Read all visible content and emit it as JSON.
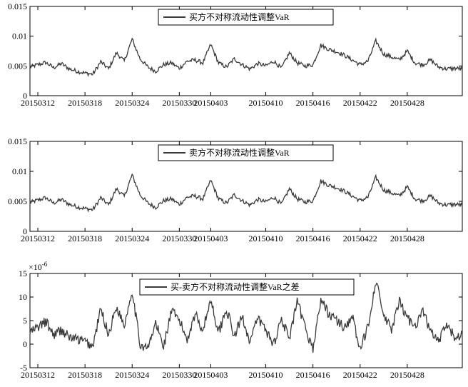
{
  "chart_data": [
    {
      "type": "line",
      "legend": "买方不对称流动性调整VaR",
      "legend_position": "top-center",
      "grid": false,
      "ylim": [
        0,
        0.015
      ],
      "yticks": [
        0,
        0.005,
        0.01,
        0.015
      ],
      "ytick_labels": [
        "0",
        "0.005",
        "0.01",
        "0.015"
      ],
      "x_dates": [
        "20150312",
        "20150318",
        "20150324",
        "20150330",
        "20150403",
        "20150410",
        "20150416",
        "20150422",
        "20150428"
      ],
      "x_start": "20150311",
      "x_end": "20150505",
      "color": "#3a3a3a",
      "approx_points": [
        [
          "20150311",
          0.0048
        ],
        [
          "20150312",
          0.0052
        ],
        [
          "20150313",
          0.0056
        ],
        [
          "20150314",
          0.0047
        ],
        [
          "20150315",
          0.0054
        ],
        [
          "20150316",
          0.0045
        ],
        [
          "20150317",
          0.0041
        ],
        [
          "20150318",
          0.0038
        ],
        [
          "20150319",
          0.0036
        ],
        [
          "20150320",
          0.0057
        ],
        [
          "20150321",
          0.0045
        ],
        [
          "20150322",
          0.0072
        ],
        [
          "20150323",
          0.0058
        ],
        [
          "20150324",
          0.0095
        ],
        [
          "20150325",
          0.0062
        ],
        [
          "20150326",
          0.0048
        ],
        [
          "20150327",
          0.0041
        ],
        [
          "20150328",
          0.0052
        ],
        [
          "20150329",
          0.0055
        ],
        [
          "20150330",
          0.0046
        ],
        [
          "20150331",
          0.0058
        ],
        [
          "20150401",
          0.006
        ],
        [
          "20150402",
          0.0055
        ],
        [
          "20150403",
          0.0086
        ],
        [
          "20150404",
          0.0055
        ],
        [
          "20150405",
          0.0048
        ],
        [
          "20150406",
          0.0062
        ],
        [
          "20150407",
          0.0052
        ],
        [
          "20150408",
          0.0045
        ],
        [
          "20150409",
          0.0054
        ],
        [
          "20150410",
          0.005
        ],
        [
          "20150411",
          0.0058
        ],
        [
          "20150412",
          0.0046
        ],
        [
          "20150413",
          0.0072
        ],
        [
          "20150414",
          0.0055
        ],
        [
          "20150415",
          0.005
        ],
        [
          "20150416",
          0.0052
        ],
        [
          "20150417",
          0.0085
        ],
        [
          "20150418",
          0.0078
        ],
        [
          "20150419",
          0.0074
        ],
        [
          "20150420",
          0.0068
        ],
        [
          "20150421",
          0.006
        ],
        [
          "20150422",
          0.0052
        ],
        [
          "20150423",
          0.0058
        ],
        [
          "20150424",
          0.0092
        ],
        [
          "20150425",
          0.007
        ],
        [
          "20150426",
          0.0065
        ],
        [
          "20150427",
          0.006
        ],
        [
          "20150428",
          0.0075
        ],
        [
          "20150429",
          0.0055
        ],
        [
          "20150430",
          0.0052
        ],
        [
          "20150501",
          0.006
        ],
        [
          "20150502",
          0.0048
        ],
        [
          "20150503",
          0.0045
        ],
        [
          "20150504",
          0.0046
        ],
        [
          "20150505",
          0.0045
        ]
      ]
    },
    {
      "type": "line",
      "legend": "卖方不对称流动性调整VaR",
      "legend_position": "top-center",
      "grid": false,
      "ylim": [
        0,
        0.015
      ],
      "yticks": [
        0,
        0.005,
        0.01,
        0.015
      ],
      "ytick_labels": [
        "0",
        "0.005",
        "0.01",
        "0.015"
      ],
      "x_dates": [
        "20150312",
        "20150318",
        "20150324",
        "20150330",
        "20150403",
        "20150410",
        "20150416",
        "20150422",
        "20150428"
      ],
      "x_start": "20150311",
      "x_end": "20150505",
      "color": "#3a3a3a",
      "approx_points": [
        [
          "20150311",
          0.0048
        ],
        [
          "20150312",
          0.0052
        ],
        [
          "20150313",
          0.0056
        ],
        [
          "20150314",
          0.0047
        ],
        [
          "20150315",
          0.0053
        ],
        [
          "20150316",
          0.0045
        ],
        [
          "20150317",
          0.0041
        ],
        [
          "20150318",
          0.0038
        ],
        [
          "20150319",
          0.0036
        ],
        [
          "20150320",
          0.0056
        ],
        [
          "20150321",
          0.0044
        ],
        [
          "20150322",
          0.0071
        ],
        [
          "20150323",
          0.0058
        ],
        [
          "20150324",
          0.0094
        ],
        [
          "20150325",
          0.0061
        ],
        [
          "20150326",
          0.0047
        ],
        [
          "20150327",
          0.004
        ],
        [
          "20150328",
          0.0051
        ],
        [
          "20150329",
          0.0054
        ],
        [
          "20150330",
          0.0045
        ],
        [
          "20150331",
          0.0057
        ],
        [
          "20150401",
          0.0059
        ],
        [
          "20150402",
          0.0054
        ],
        [
          "20150403",
          0.0085
        ],
        [
          "20150404",
          0.0054
        ],
        [
          "20150405",
          0.0047
        ],
        [
          "20150406",
          0.0061
        ],
        [
          "20150407",
          0.0051
        ],
        [
          "20150408",
          0.0044
        ],
        [
          "20150409",
          0.0053
        ],
        [
          "20150410",
          0.0049
        ],
        [
          "20150411",
          0.0057
        ],
        [
          "20150412",
          0.0045
        ],
        [
          "20150413",
          0.0071
        ],
        [
          "20150414",
          0.0054
        ],
        [
          "20150415",
          0.0049
        ],
        [
          "20150416",
          0.0051
        ],
        [
          "20150417",
          0.0084
        ],
        [
          "20150418",
          0.0077
        ],
        [
          "20150419",
          0.0073
        ],
        [
          "20150420",
          0.0067
        ],
        [
          "20150421",
          0.0059
        ],
        [
          "20150422",
          0.0051
        ],
        [
          "20150423",
          0.0057
        ],
        [
          "20150424",
          0.009
        ],
        [
          "20150425",
          0.0069
        ],
        [
          "20150426",
          0.0064
        ],
        [
          "20150427",
          0.0059
        ],
        [
          "20150428",
          0.0074
        ],
        [
          "20150429",
          0.0054
        ],
        [
          "20150430",
          0.0051
        ],
        [
          "20150501",
          0.0059
        ],
        [
          "20150502",
          0.0047
        ],
        [
          "20150503",
          0.0044
        ],
        [
          "20150504",
          0.0045
        ],
        [
          "20150505",
          0.0044
        ]
      ]
    },
    {
      "type": "line",
      "legend": "买-卖方不对称流动性调整VaR之差",
      "legend_position": "top-center",
      "grid": false,
      "y_multiplier_base": "×10",
      "y_multiplier_exp": "-6",
      "ylim": [
        -5,
        15
      ],
      "yticks": [
        -5,
        0,
        5,
        10,
        15
      ],
      "ytick_labels": [
        "-5",
        "0",
        "5",
        "10",
        "15"
      ],
      "x_dates": [
        "20150312",
        "20150318",
        "20150324",
        "20150330",
        "20150403",
        "20150410",
        "20150416",
        "20150422",
        "20150428"
      ],
      "x_start": "20150311",
      "x_end": "20150505",
      "color": "#3a3a3a",
      "approx_points": [
        [
          "20150311",
          2.5
        ],
        [
          "20150312",
          3.5
        ],
        [
          "20150313",
          4.8
        ],
        [
          "20150314",
          2.0
        ],
        [
          "20150315",
          3.0
        ],
        [
          "20150316",
          1.5
        ],
        [
          "20150317",
          1.0
        ],
        [
          "20150318",
          0.5
        ],
        [
          "20150319",
          -0.5
        ],
        [
          "20150320",
          7.5
        ],
        [
          "20150321",
          2.0
        ],
        [
          "20150322",
          8.0
        ],
        [
          "20150323",
          4.0
        ],
        [
          "20150324",
          11.5
        ],
        [
          "20150325",
          0.0
        ],
        [
          "20150326",
          -1.0
        ],
        [
          "20150327",
          4.5
        ],
        [
          "20150328",
          -0.5
        ],
        [
          "20150329",
          7.0
        ],
        [
          "20150330",
          5.0
        ],
        [
          "20150331",
          1.0
        ],
        [
          "20150401",
          6.5
        ],
        [
          "20150402",
          3.0
        ],
        [
          "20150403",
          9.5
        ],
        [
          "20150404",
          2.5
        ],
        [
          "20150405",
          7.5
        ],
        [
          "20150406",
          1.5
        ],
        [
          "20150407",
          6.0
        ],
        [
          "20150408",
          0.5
        ],
        [
          "20150409",
          5.5
        ],
        [
          "20150410",
          3.0
        ],
        [
          "20150411",
          0.0
        ],
        [
          "20150412",
          5.5
        ],
        [
          "20150413",
          1.0
        ],
        [
          "20150414",
          9.0
        ],
        [
          "20150415",
          3.5
        ],
        [
          "20150416",
          -1.0
        ],
        [
          "20150417",
          9.5
        ],
        [
          "20150418",
          6.5
        ],
        [
          "20150419",
          5.0
        ],
        [
          "20150420",
          3.5
        ],
        [
          "20150421",
          6.0
        ],
        [
          "20150422",
          -1.5
        ],
        [
          "20150423",
          4.0
        ],
        [
          "20150424",
          13.5
        ],
        [
          "20150425",
          6.0
        ],
        [
          "20150426",
          3.0
        ],
        [
          "20150427",
          9.0
        ],
        [
          "20150428",
          5.5
        ],
        [
          "20150429",
          4.0
        ],
        [
          "20150430",
          7.0
        ],
        [
          "20150501",
          2.5
        ],
        [
          "20150502",
          0.5
        ],
        [
          "20150503",
          4.0
        ],
        [
          "20150504",
          1.5
        ],
        [
          "20150505",
          2.0
        ]
      ]
    }
  ]
}
